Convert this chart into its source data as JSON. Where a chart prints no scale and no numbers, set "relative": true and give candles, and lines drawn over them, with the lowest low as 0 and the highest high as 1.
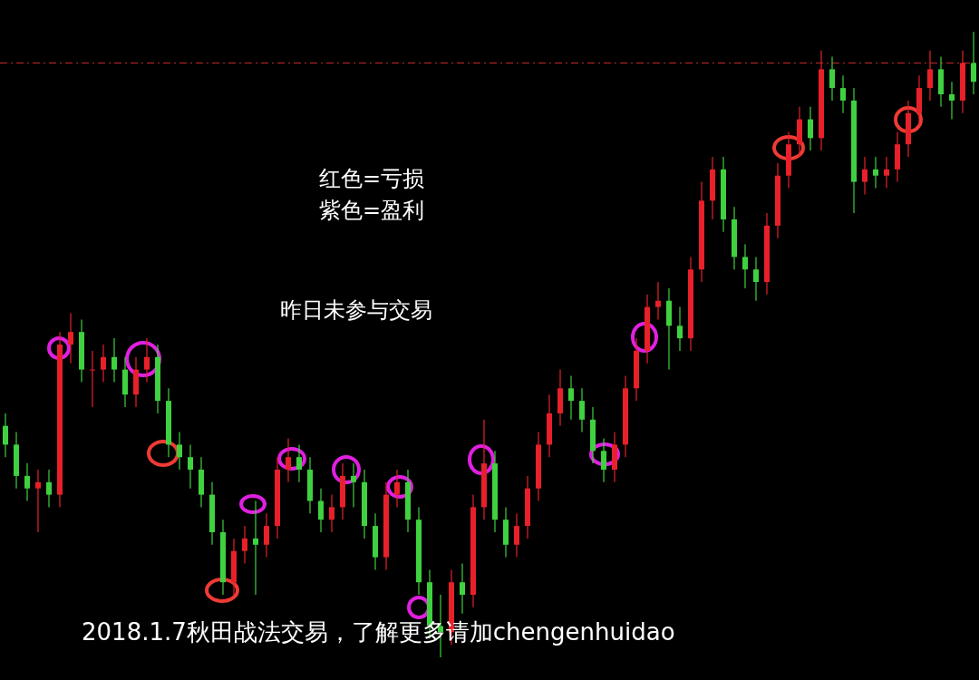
{
  "chart_data": {
    "type": "candlestick",
    "relative": true,
    "categories": [
      null,
      null,
      null,
      null,
      null,
      null,
      null,
      null,
      null,
      null,
      null,
      null,
      null,
      null,
      null,
      null,
      null,
      null,
      null,
      null,
      null,
      null,
      null,
      null,
      null,
      null,
      null,
      null,
      null,
      null,
      null,
      null,
      null,
      null,
      null,
      null,
      null,
      null,
      null,
      null,
      null,
      null,
      null,
      null,
      null,
      null,
      null,
      null,
      null,
      null,
      null,
      null,
      null,
      null,
      null,
      null,
      null,
      null,
      null,
      null,
      null,
      null,
      null,
      null,
      null,
      null,
      null,
      null,
      null,
      null,
      null,
      null,
      null,
      null,
      null,
      null,
      null,
      null,
      null,
      null,
      null,
      null,
      null,
      null,
      null,
      null,
      null,
      null,
      null,
      null
    ],
    "ohlc": [
      [
        0.37,
        0.39,
        0.32,
        0.34
      ],
      [
        0.34,
        0.36,
        0.27,
        0.29
      ],
      [
        0.29,
        0.31,
        0.25,
        0.27
      ],
      [
        0.27,
        0.3,
        0.2,
        0.28
      ],
      [
        0.28,
        0.3,
        0.24,
        0.26
      ],
      [
        0.26,
        0.52,
        0.24,
        0.5
      ],
      [
        0.5,
        0.55,
        0.47,
        0.52
      ],
      [
        0.52,
        0.54,
        0.44,
        0.46
      ],
      [
        0.46,
        0.49,
        0.4,
        0.46
      ],
      [
        0.46,
        0.5,
        0.44,
        0.48
      ],
      [
        0.48,
        0.51,
        0.44,
        0.46
      ],
      [
        0.46,
        0.48,
        0.4,
        0.42
      ],
      [
        0.42,
        0.48,
        0.4,
        0.46
      ],
      [
        0.46,
        0.51,
        0.44,
        0.48
      ],
      [
        0.48,
        0.5,
        0.39,
        0.41
      ],
      [
        0.41,
        0.43,
        0.32,
        0.34
      ],
      [
        0.34,
        0.36,
        0.3,
        0.32
      ],
      [
        0.32,
        0.34,
        0.27,
        0.3
      ],
      [
        0.3,
        0.32,
        0.24,
        0.26
      ],
      [
        0.26,
        0.28,
        0.18,
        0.2
      ],
      [
        0.2,
        0.22,
        0.1,
        0.12
      ],
      [
        0.12,
        0.19,
        0.1,
        0.17
      ],
      [
        0.17,
        0.21,
        0.15,
        0.19
      ],
      [
        0.19,
        0.25,
        0.1,
        0.18
      ],
      [
        0.18,
        0.23,
        0.16,
        0.21
      ],
      [
        0.21,
        0.32,
        0.19,
        0.3
      ],
      [
        0.3,
        0.35,
        0.28,
        0.32
      ],
      [
        0.32,
        0.34,
        0.28,
        0.3
      ],
      [
        0.3,
        0.32,
        0.23,
        0.25
      ],
      [
        0.25,
        0.27,
        0.2,
        0.22
      ],
      [
        0.22,
        0.26,
        0.2,
        0.24
      ],
      [
        0.24,
        0.31,
        0.22,
        0.29
      ],
      [
        0.29,
        0.31,
        0.24,
        0.28
      ],
      [
        0.28,
        0.3,
        0.19,
        0.21
      ],
      [
        0.21,
        0.23,
        0.14,
        0.16
      ],
      [
        0.16,
        0.28,
        0.14,
        0.26
      ],
      [
        0.26,
        0.3,
        0.24,
        0.28
      ],
      [
        0.28,
        0.3,
        0.2,
        0.22
      ],
      [
        0.22,
        0.24,
        0.1,
        0.12
      ],
      [
        0.12,
        0.14,
        0.03,
        0.05
      ],
      [
        0.05,
        0.1,
        0,
        0.04
      ],
      [
        0.04,
        0.14,
        0.02,
        0.12
      ],
      [
        0.12,
        0.15,
        0.07,
        0.1
      ],
      [
        0.1,
        0.26,
        0.08,
        0.24
      ],
      [
        0.24,
        0.38,
        0.22,
        0.31
      ],
      [
        0.31,
        0.33,
        0.2,
        0.22
      ],
      [
        0.22,
        0.24,
        0.16,
        0.18
      ],
      [
        0.18,
        0.23,
        0.16,
        0.21
      ],
      [
        0.21,
        0.29,
        0.19,
        0.27
      ],
      [
        0.27,
        0.36,
        0.25,
        0.34
      ],
      [
        0.34,
        0.42,
        0.32,
        0.39
      ],
      [
        0.39,
        0.46,
        0.37,
        0.43
      ],
      [
        0.43,
        0.45,
        0.38,
        0.41
      ],
      [
        0.41,
        0.43,
        0.36,
        0.38
      ],
      [
        0.38,
        0.4,
        0.31,
        0.33
      ],
      [
        0.33,
        0.35,
        0.28,
        0.3
      ],
      [
        0.3,
        0.36,
        0.28,
        0.34
      ],
      [
        0.34,
        0.45,
        0.32,
        0.43
      ],
      [
        0.43,
        0.51,
        0.41,
        0.49
      ],
      [
        0.49,
        0.58,
        0.47,
        0.56
      ],
      [
        0.56,
        0.6,
        0.54,
        0.57
      ],
      [
        0.57,
        0.59,
        0.46,
        0.53
      ],
      [
        0.53,
        0.56,
        0.49,
        0.51
      ],
      [
        0.51,
        0.64,
        0.49,
        0.62
      ],
      [
        0.62,
        0.76,
        0.6,
        0.73
      ],
      [
        0.73,
        0.8,
        0.7,
        0.78
      ],
      [
        0.78,
        0.8,
        0.68,
        0.7
      ],
      [
        0.7,
        0.72,
        0.62,
        0.64
      ],
      [
        0.64,
        0.66,
        0.59,
        0.62
      ],
      [
        0.62,
        0.64,
        0.57,
        0.6
      ],
      [
        0.6,
        0.71,
        0.58,
        0.69
      ],
      [
        0.69,
        0.79,
        0.67,
        0.77
      ],
      [
        0.77,
        0.84,
        0.75,
        0.82
      ],
      [
        0.82,
        0.88,
        0.8,
        0.86
      ],
      [
        0.86,
        0.88,
        0.81,
        0.83
      ],
      [
        0.83,
        0.97,
        0.81,
        0.94
      ],
      [
        0.94,
        0.96,
        0.89,
        0.91
      ],
      [
        0.91,
        0.93,
        0.87,
        0.89
      ],
      [
        0.89,
        0.91,
        0.71,
        0.76
      ],
      [
        0.76,
        0.8,
        0.74,
        0.78
      ],
      [
        0.78,
        0.8,
        0.75,
        0.77
      ],
      [
        0.77,
        0.8,
        0.75,
        0.78
      ],
      [
        0.78,
        0.84,
        0.76,
        0.82
      ],
      [
        0.82,
        0.89,
        0.8,
        0.87
      ],
      [
        0.87,
        0.93,
        0.85,
        0.91
      ],
      [
        0.91,
        0.97,
        0.89,
        0.94
      ],
      [
        0.94,
        0.96,
        0.88,
        0.9
      ],
      [
        0.9,
        0.92,
        0.86,
        0.89
      ],
      [
        0.89,
        0.97,
        0.87,
        0.95
      ],
      [
        0.95,
        1,
        0.9,
        0.92
      ]
    ],
    "ref_lines": [
      {
        "axis": "y",
        "value": 0.95,
        "color": "#c8282a",
        "line_style": "dashed"
      }
    ],
    "annotations": [
      "红色=亏损",
      "紫色=盈利",
      "昨日未参与交易",
      "2018.1.7秋田战法交易，了解更多请加chengenhuidao"
    ]
  }
}
